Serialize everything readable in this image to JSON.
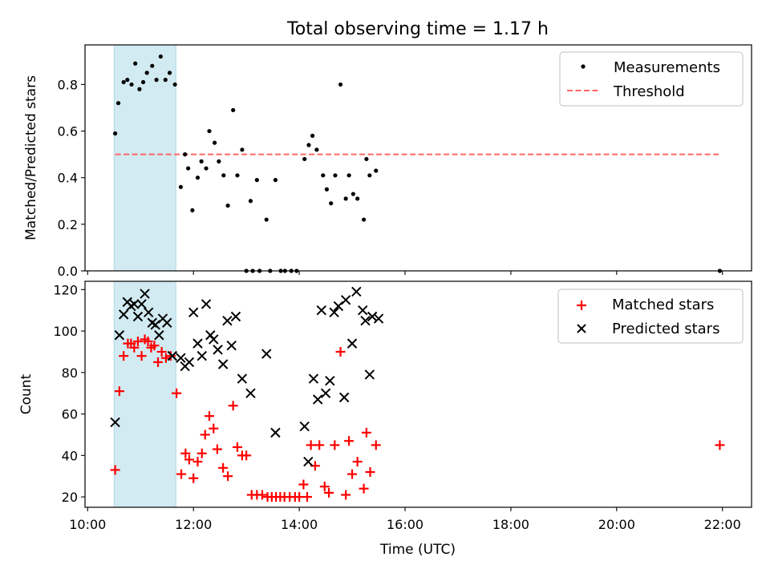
{
  "title": "Total observing time = 1.17 h",
  "xlabel": "Time (UTC)",
  "colors": {
    "shade": "#add8e6",
    "threshold": "#ff6666",
    "matched": "#ff0000",
    "predicted": "#000000",
    "measure": "#000000"
  },
  "chart_data": [
    {
      "type": "scatter",
      "ylabel": "Matched/Predicted stars",
      "ylim": [
        0,
        0.97
      ],
      "yticks": [
        "0.0",
        "0.2",
        "0.4",
        "0.6",
        "0.8"
      ],
      "xlim": [
        9.95,
        22.55
      ],
      "xticks": [
        "10:00",
        "12:00",
        "14:00",
        "16:00",
        "18:00",
        "20:00",
        "22:00"
      ],
      "shaded_span": [
        "10:30",
        "11:40"
      ],
      "threshold": 0.5,
      "legend": {
        "position": "upper right",
        "entries": [
          "Measurements",
          "Threshold"
        ]
      },
      "series": [
        {
          "name": "Measurements",
          "points": [
            [
              10.52,
              0.59
            ],
            [
              10.58,
              0.72
            ],
            [
              10.68,
              0.81
            ],
            [
              10.75,
              0.82
            ],
            [
              10.83,
              0.8
            ],
            [
              10.9,
              0.89
            ],
            [
              10.98,
              0.78
            ],
            [
              11.05,
              0.81
            ],
            [
              11.12,
              0.85
            ],
            [
              11.22,
              0.88
            ],
            [
              11.3,
              0.82
            ],
            [
              11.38,
              0.92
            ],
            [
              11.47,
              0.82
            ],
            [
              11.55,
              0.85
            ],
            [
              11.65,
              0.8
            ],
            [
              11.76,
              0.36
            ],
            [
              11.84,
              0.5
            ],
            [
              11.9,
              0.44
            ],
            [
              11.98,
              0.26
            ],
            [
              12.08,
              0.4
            ],
            [
              12.15,
              0.47
            ],
            [
              12.24,
              0.44
            ],
            [
              12.3,
              0.6
            ],
            [
              12.4,
              0.55
            ],
            [
              12.48,
              0.47
            ],
            [
              12.57,
              0.41
            ],
            [
              12.65,
              0.28
            ],
            [
              12.75,
              0.69
            ],
            [
              12.83,
              0.41
            ],
            [
              12.92,
              0.52
            ],
            [
              13.08,
              0.3
            ],
            [
              13.2,
              0.39
            ],
            [
              13.38,
              0.22
            ],
            [
              13.55,
              0.39
            ],
            [
              13.0,
              0.0
            ],
            [
              13.12,
              0.0
            ],
            [
              13.25,
              0.0
            ],
            [
              13.45,
              0.0
            ],
            [
              13.65,
              0.0
            ],
            [
              13.73,
              0.0
            ],
            [
              13.85,
              0.0
            ],
            [
              13.95,
              0.0
            ],
            [
              14.1,
              0.48
            ],
            [
              14.18,
              0.54
            ],
            [
              14.25,
              0.58
            ],
            [
              14.33,
              0.52
            ],
            [
              14.45,
              0.41
            ],
            [
              14.52,
              0.35
            ],
            [
              14.6,
              0.29
            ],
            [
              14.68,
              0.41
            ],
            [
              14.78,
              0.8
            ],
            [
              14.88,
              0.31
            ],
            [
              14.94,
              0.41
            ],
            [
              15.02,
              0.33
            ],
            [
              15.1,
              0.31
            ],
            [
              15.22,
              0.22
            ],
            [
              15.27,
              0.48
            ],
            [
              15.33,
              0.41
            ],
            [
              15.45,
              0.43
            ],
            [
              21.95,
              0.0
            ]
          ]
        }
      ]
    },
    {
      "type": "scatter",
      "ylabel": "Count",
      "ylim": [
        15,
        124
      ],
      "yticks": [
        "20",
        "40",
        "60",
        "80",
        "100",
        "120"
      ],
      "xlim": [
        9.95,
        22.55
      ],
      "xticks": [
        "10:00",
        "12:00",
        "14:00",
        "16:00",
        "18:00",
        "20:00",
        "22:00"
      ],
      "shaded_span": [
        "10:30",
        "11:40"
      ],
      "legend": {
        "position": "upper right",
        "entries": [
          "Matched stars",
          "Predicted stars"
        ]
      },
      "series": [
        {
          "name": "Matched stars",
          "marker": "+",
          "points": [
            [
              10.52,
              33
            ],
            [
              10.6,
              71
            ],
            [
              10.68,
              88
            ],
            [
              10.76,
              94
            ],
            [
              10.82,
              94
            ],
            [
              10.88,
              92
            ],
            [
              10.95,
              95
            ],
            [
              11.02,
              88
            ],
            [
              11.08,
              96
            ],
            [
              11.14,
              95
            ],
            [
              11.2,
              92
            ],
            [
              11.26,
              93
            ],
            [
              11.33,
              85
            ],
            [
              11.4,
              90
            ],
            [
              11.48,
              87
            ],
            [
              11.57,
              88
            ],
            [
              11.68,
              70
            ],
            [
              11.77,
              31
            ],
            [
              11.85,
              41
            ],
            [
              11.92,
              38
            ],
            [
              12.0,
              29
            ],
            [
              12.08,
              37
            ],
            [
              12.16,
              41
            ],
            [
              12.22,
              50
            ],
            [
              12.3,
              59
            ],
            [
              12.38,
              53
            ],
            [
              12.45,
              43
            ],
            [
              12.56,
              34
            ],
            [
              12.65,
              30
            ],
            [
              12.75,
              64
            ],
            [
              12.83,
              44
            ],
            [
              12.92,
              40
            ],
            [
              13.0,
              40
            ],
            [
              13.1,
              21
            ],
            [
              13.2,
              21
            ],
            [
              13.3,
              21
            ],
            [
              13.4,
              20
            ],
            [
              13.48,
              20
            ],
            [
              13.56,
              20
            ],
            [
              13.64,
              20
            ],
            [
              13.72,
              20
            ],
            [
              13.82,
              20
            ],
            [
              13.92,
              20
            ],
            [
              14.0,
              20
            ],
            [
              14.08,
              26
            ],
            [
              14.15,
              20
            ],
            [
              14.22,
              45
            ],
            [
              14.3,
              35
            ],
            [
              14.38,
              45
            ],
            [
              14.48,
              25
            ],
            [
              14.56,
              22
            ],
            [
              14.67,
              45
            ],
            [
              14.78,
              90
            ],
            [
              14.88,
              21
            ],
            [
              14.94,
              47
            ],
            [
              15.0,
              31
            ],
            [
              15.1,
              37
            ],
            [
              15.22,
              24
            ],
            [
              15.27,
              51
            ],
            [
              15.34,
              32
            ],
            [
              15.45,
              45
            ],
            [
              21.95,
              45
            ]
          ]
        },
        {
          "name": "Predicted stars",
          "marker": "x",
          "points": [
            [
              10.52,
              56
            ],
            [
              10.6,
              98
            ],
            [
              10.68,
              108
            ],
            [
              10.75,
              114
            ],
            [
              10.82,
              112
            ],
            [
              10.88,
              113
            ],
            [
              10.95,
              107
            ],
            [
              11.02,
              113
            ],
            [
              11.08,
              118
            ],
            [
              11.15,
              109
            ],
            [
              11.22,
              104
            ],
            [
              11.28,
              103
            ],
            [
              11.35,
              98
            ],
            [
              11.42,
              106
            ],
            [
              11.5,
              104
            ],
            [
              11.6,
              88
            ],
            [
              11.76,
              87
            ],
            [
              11.84,
              83
            ],
            [
              11.92,
              85
            ],
            [
              12.0,
              109
            ],
            [
              12.08,
              94
            ],
            [
              12.16,
              88
            ],
            [
              12.24,
              113
            ],
            [
              12.32,
              98
            ],
            [
              12.38,
              96
            ],
            [
              12.46,
              91
            ],
            [
              12.56,
              84
            ],
            [
              12.64,
              105
            ],
            [
              12.72,
              93
            ],
            [
              12.8,
              107
            ],
            [
              12.92,
              77
            ],
            [
              13.08,
              70
            ],
            [
              13.38,
              89
            ],
            [
              13.55,
              51
            ],
            [
              14.1,
              54
            ],
            [
              14.17,
              37
            ],
            [
              14.27,
              77
            ],
            [
              14.35,
              67
            ],
            [
              14.42,
              110
            ],
            [
              14.5,
              70
            ],
            [
              14.58,
              76
            ],
            [
              14.66,
              109
            ],
            [
              14.74,
              112
            ],
            [
              14.85,
              68
            ],
            [
              14.88,
              115
            ],
            [
              15.0,
              94
            ],
            [
              15.08,
              119
            ],
            [
              15.2,
              110
            ],
            [
              15.25,
              105
            ],
            [
              15.33,
              79
            ],
            [
              15.38,
              107
            ],
            [
              15.5,
              106
            ]
          ]
        }
      ]
    }
  ]
}
